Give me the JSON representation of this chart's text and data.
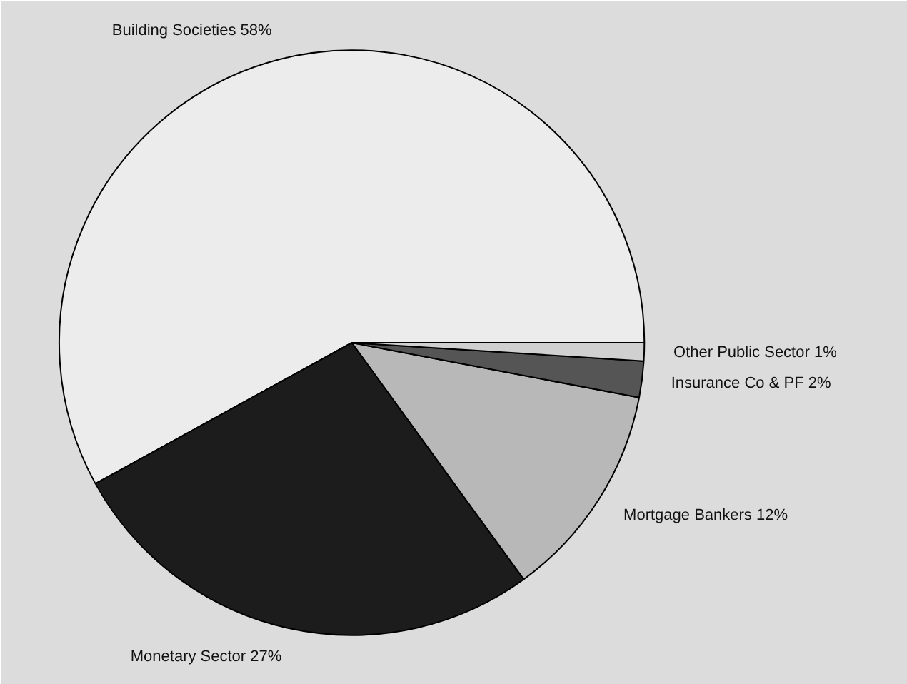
{
  "chart_data": {
    "type": "pie",
    "categories": [
      "Building Societies 58%",
      "Monetary Sector 27%",
      "Mortgage Bankers 12%",
      "Insurance Co & PF 2%",
      "Other Public Sector 1%"
    ],
    "values": [
      58,
      27,
      12,
      2,
      1
    ],
    "colors": [
      "#ececec",
      "#1c1c1c",
      "#b8b8b8",
      "#555555",
      "#d0d0d0"
    ]
  }
}
